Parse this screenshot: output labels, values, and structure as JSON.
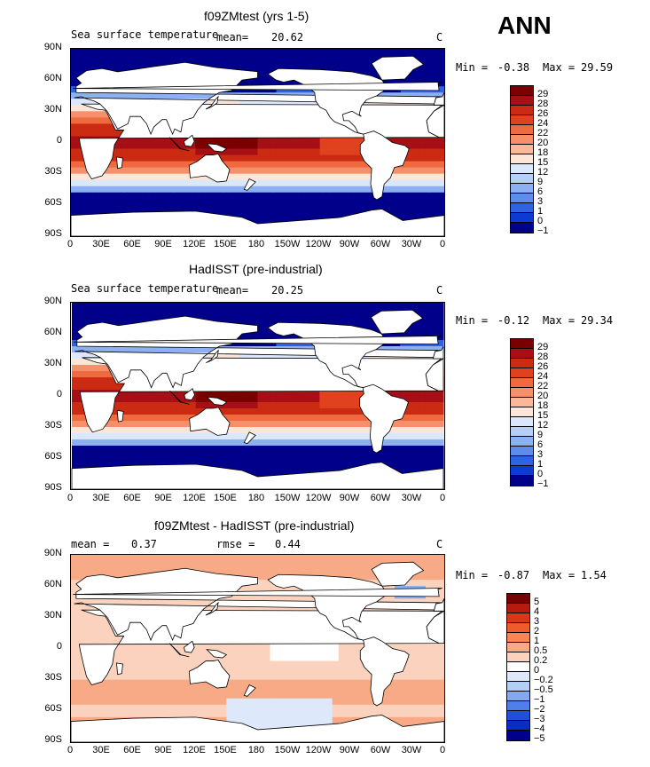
{
  "annual_label": "ANN",
  "panels": [
    {
      "title": "f09ZMtest (yrs 1-5)",
      "left_text": "Sea surface temperature",
      "mean_text": "mean=",
      "mean_value": "20.62",
      "unit": "C",
      "min_label": "Min =",
      "min_value": "-0.38",
      "max_label": "Max =",
      "max_value": "29.59",
      "colorbar_labels": [
        "29",
        "28",
        "26",
        "24",
        "22",
        "20",
        "18",
        "15",
        "12",
        "9",
        "6",
        "3",
        "1",
        "0",
        "−1"
      ]
    },
    {
      "title": "HadISST (pre-industrial)",
      "left_text": "Sea surface temperature",
      "mean_text": "mean=",
      "mean_value": "20.25",
      "unit": "C",
      "min_label": "Min =",
      "min_value": "-0.12",
      "max_label": "Max =",
      "max_value": "29.34",
      "colorbar_labels": [
        "29",
        "28",
        "26",
        "24",
        "22",
        "20",
        "18",
        "15",
        "12",
        "9",
        "6",
        "3",
        "1",
        "0",
        "−1"
      ]
    },
    {
      "title": "f09ZMtest - HadISST (pre-industrial)",
      "left_text": "mean =",
      "mean_value": "0.37",
      "rmse_text": "rmse =",
      "rmse_value": "0.44",
      "unit": "C",
      "min_label": "Min =",
      "min_value": "-0.87",
      "max_label": "Max =",
      "max_value": "1.54",
      "colorbar_labels": [
        "5",
        "4",
        "3",
        "2",
        "1",
        "0.5",
        "0.2",
        "0",
        "−0.2",
        "−0.5",
        "−1",
        "−2",
        "−3",
        "−4",
        "−5"
      ]
    }
  ],
  "lat_labels": [
    "90N",
    "60N",
    "30N",
    "0",
    "30S",
    "60S",
    "90S"
  ],
  "lon_labels": [
    "0",
    "30E",
    "60E",
    "90E",
    "120E",
    "150E",
    "180",
    "150W",
    "120W",
    "90W",
    "60W",
    "30W",
    "0"
  ],
  "colors": {
    "abs_scale": [
      "#7a0000",
      "#a50f15",
      "#cb2b12",
      "#e0411e",
      "#ef6a3e",
      "#f5906a",
      "#fbb899",
      "#fde5d8",
      "#dbe7fb",
      "#b5cff7",
      "#8cb0f2",
      "#5d8ced",
      "#2f63e6",
      "#0b3bd3",
      "#00008b"
    ],
    "diff_scale": [
      "#7a0000",
      "#b71a0e",
      "#d93817",
      "#ef5b2a",
      "#f68656",
      "#f8aa86",
      "#fbd2bd",
      "#ffffff",
      "#dde8fb",
      "#b4cff7",
      "#83aaf0",
      "#4f7fe8",
      "#1f4fdc",
      "#0b2ebd",
      "#00008b"
    ]
  }
}
